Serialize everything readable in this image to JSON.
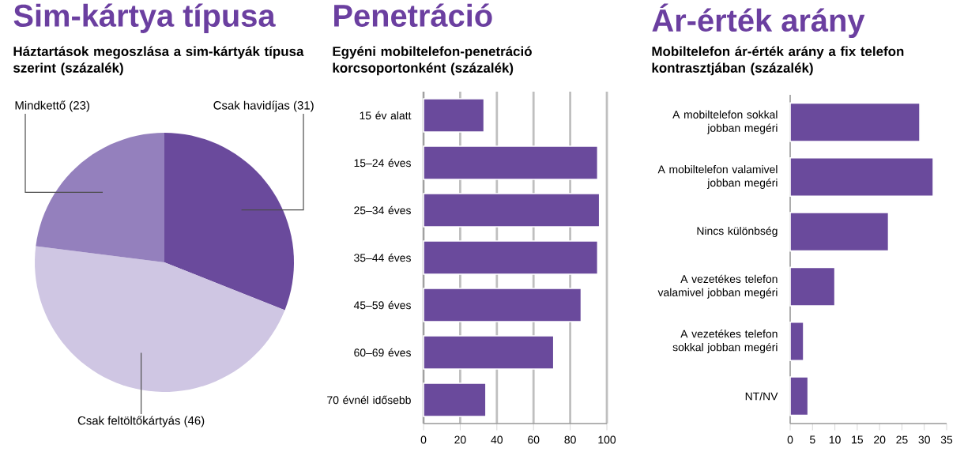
{
  "chart_data": [
    {
      "type": "pie",
      "title": "Sim-kártya típusa",
      "subtitle": "Háztartások megoszlása a sim-kártyák típusa szerint (százalék)",
      "categories": [
        "Csak havidíjas",
        "Csak feltöltőkártyás",
        "Mindkettő"
      ],
      "values": [
        31,
        46,
        23
      ],
      "value_labels": [
        "(31)",
        "(46)",
        "(23)"
      ],
      "colors": [
        "#6a4a9c",
        "#cfc6e3",
        "#9480bd"
      ]
    },
    {
      "type": "bar",
      "orientation": "horizontal",
      "title": "Penetráció",
      "subtitle": "Egyéni mobiltelefon-penetráció korcsoportonként (százalék)",
      "categories": [
        "15 év alatt",
        "15–24 éves",
        "25–34 éves",
        "35–44 éves",
        "45–59 éves",
        "60–69 éves",
        "70 évnél idősebb"
      ],
      "values": [
        33,
        95,
        96,
        95,
        86,
        71,
        34
      ],
      "color": "#6a4a9c",
      "xlim": [
        0,
        100
      ],
      "xticks": [
        0,
        20,
        40,
        60,
        80,
        100
      ],
      "grid": "x"
    },
    {
      "type": "bar",
      "orientation": "horizontal",
      "title": "Ár-érték arány",
      "subtitle": "Mobiltelefon ár-érték arány a fix telefon kontrasztjában (százalék)",
      "categories": [
        "A mobiltelefon sokkal jobban megéri",
        "A mobiltelefon valamivel jobban megéri",
        "Nincs különbség",
        "A vezetékes telefon valamivel jobban megéri",
        "A vezetékes telefon sokkal jobban megéri",
        "NT/NV"
      ],
      "values": [
        29,
        32,
        22,
        10,
        3,
        4
      ],
      "color": "#6a4a9c",
      "xlim": [
        0,
        35
      ],
      "xticks": [
        0,
        5,
        10,
        15,
        20,
        25,
        30,
        35
      ]
    }
  ]
}
